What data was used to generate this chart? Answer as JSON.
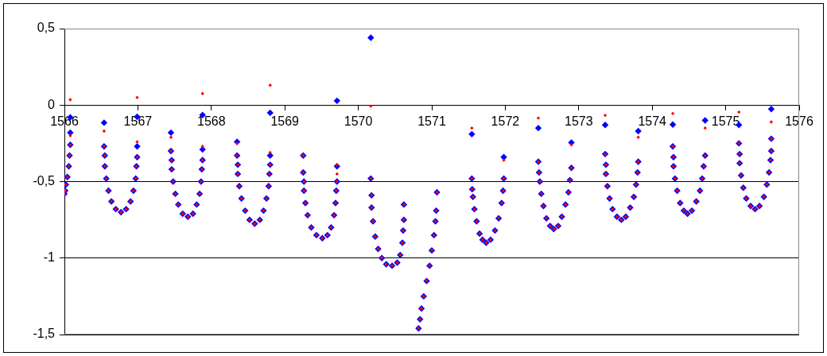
{
  "chart_data": {
    "type": "scatter",
    "xlim": [
      1566,
      1576
    ],
    "xticks": [
      1566,
      1567,
      1568,
      1569,
      1570,
      1571,
      1572,
      1573,
      1574,
      1575,
      1576
    ],
    "ylim": [
      -1.5,
      0.5
    ],
    "yticks": [
      {
        "value": 0.5,
        "label": "0,5"
      },
      0,
      {
        "value": -0.5,
        "label": "-0,5"
      },
      -1,
      {
        "value": -1.5,
        "label": "-1,5"
      }
    ],
    "grid": "y",
    "marker": "diamond",
    "series": [
      {
        "color": "#0000ff",
        "x": [
          1566.0,
          1566.01,
          1566.02,
          1566.04,
          1566.06,
          1566.07,
          1566.08,
          1566.08,
          1566.08,
          1566.54,
          1566.54,
          1566.55,
          1566.55,
          1566.57,
          1566.6,
          1566.64,
          1566.7,
          1566.77,
          1566.84,
          1566.9,
          1566.94,
          1566.97,
          1566.98,
          1566.99,
          1566.99,
          1566.99,
          1567.45,
          1567.45,
          1567.46,
          1567.46,
          1567.48,
          1567.51,
          1567.55,
          1567.61,
          1567.68,
          1567.75,
          1567.8,
          1567.84,
          1567.86,
          1567.87,
          1567.88,
          1567.88,
          1567.88,
          1568.35,
          1568.35,
          1568.36,
          1568.36,
          1568.38,
          1568.41,
          1568.46,
          1568.52,
          1568.59,
          1568.66,
          1568.71,
          1568.75,
          1568.78,
          1568.79,
          1568.8,
          1568.8,
          1568.8,
          1569.25,
          1569.25,
          1569.26,
          1569.26,
          1569.28,
          1569.31,
          1569.36,
          1569.43,
          1569.51,
          1569.58,
          1569.63,
          1569.67,
          1569.69,
          1569.7,
          1569.71,
          1569.71,
          1569.71,
          1570.17,
          1570.17,
          1570.18,
          1570.18,
          1570.2,
          1570.23,
          1570.27,
          1570.32,
          1570.38,
          1570.46,
          1570.53,
          1570.57,
          1570.6,
          1570.61,
          1570.62,
          1570.62,
          1571.07,
          1571.06,
          1571.05,
          1571.03,
          1571.0,
          1570.97,
          1570.93,
          1570.89,
          1570.86,
          1570.84,
          1570.82,
          1571.545,
          1571.545,
          1571.55,
          1571.56,
          1571.58,
          1571.61,
          1571.65,
          1571.69,
          1571.74,
          1571.8,
          1571.86,
          1571.91,
          1571.95,
          1571.97,
          1571.98,
          1571.98,
          1572.45,
          1572.45,
          1572.46,
          1572.47,
          1572.49,
          1572.52,
          1572.56,
          1572.61,
          1572.66,
          1572.72,
          1572.77,
          1572.82,
          1572.86,
          1572.88,
          1572.9,
          1572.9,
          1573.36,
          1573.36,
          1573.37,
          1573.37,
          1573.39,
          1573.42,
          1573.46,
          1573.52,
          1573.58,
          1573.64,
          1573.7,
          1573.75,
          1573.78,
          1573.8,
          1573.81,
          1573.81,
          1574.28,
          1574.28,
          1574.29,
          1574.29,
          1574.31,
          1574.34,
          1574.38,
          1574.43,
          1574.48,
          1574.54,
          1574.6,
          1574.65,
          1574.68,
          1574.7,
          1574.72,
          1574.72,
          1575.18,
          1575.18,
          1575.19,
          1575.19,
          1575.21,
          1575.24,
          1575.28,
          1575.34,
          1575.4,
          1575.46,
          1575.52,
          1575.56,
          1575.59,
          1575.61,
          1575.62,
          1575.62,
          1575.62
        ],
        "values": [
          -0.58,
          -0.56,
          -0.52,
          -0.47,
          -0.4,
          -0.33,
          -0.26,
          -0.18,
          -0.08,
          -0.115,
          -0.27,
          -0.33,
          -0.4,
          -0.48,
          -0.56,
          -0.63,
          -0.68,
          -0.7,
          -0.68,
          -0.63,
          -0.56,
          -0.48,
          -0.4,
          -0.34,
          -0.27,
          -0.077,
          -0.18,
          -0.3,
          -0.36,
          -0.42,
          -0.5,
          -0.58,
          -0.65,
          -0.71,
          -0.73,
          -0.71,
          -0.65,
          -0.58,
          -0.5,
          -0.42,
          -0.36,
          -0.29,
          -0.065,
          -0.24,
          -0.33,
          -0.39,
          -0.45,
          -0.53,
          -0.61,
          -0.69,
          -0.75,
          -0.775,
          -0.75,
          -0.69,
          -0.61,
          -0.53,
          -0.45,
          -0.39,
          -0.33,
          -0.05,
          -0.33,
          -0.44,
          -0.5,
          -0.56,
          -0.64,
          -0.72,
          -0.8,
          -0.85,
          -0.87,
          -0.85,
          -0.8,
          -0.72,
          -0.64,
          -0.56,
          -0.5,
          -0.4,
          0.028,
          0.44,
          -0.48,
          -0.59,
          -0.67,
          -0.76,
          -0.86,
          -0.94,
          -1.0,
          -1.04,
          -1.05,
          -1.03,
          -0.98,
          -0.9,
          -0.82,
          -0.75,
          -0.65,
          -0.57,
          -0.69,
          -0.76,
          -0.85,
          -0.95,
          -1.05,
          -1.15,
          -1.25,
          -1.33,
          -1.4,
          -1.46,
          -0.19,
          -0.48,
          -0.55,
          -0.6,
          -0.68,
          -0.76,
          -0.84,
          -0.88,
          -0.9,
          -0.88,
          -0.82,
          -0.74,
          -0.64,
          -0.56,
          -0.48,
          -0.34,
          -0.15,
          -0.37,
          -0.44,
          -0.5,
          -0.58,
          -0.66,
          -0.74,
          -0.79,
          -0.81,
          -0.79,
          -0.73,
          -0.65,
          -0.57,
          -0.49,
          -0.41,
          -0.245,
          -0.13,
          -0.32,
          -0.39,
          -0.45,
          -0.53,
          -0.61,
          -0.68,
          -0.73,
          -0.75,
          -0.73,
          -0.67,
          -0.6,
          -0.52,
          -0.44,
          -0.37,
          -0.17,
          -0.127,
          -0.27,
          -0.34,
          -0.4,
          -0.48,
          -0.56,
          -0.64,
          -0.69,
          -0.71,
          -0.69,
          -0.63,
          -0.56,
          -0.48,
          -0.4,
          -0.33,
          -0.1,
          -0.13,
          -0.25,
          -0.32,
          -0.38,
          -0.46,
          -0.54,
          -0.61,
          -0.66,
          -0.68,
          -0.66,
          -0.6,
          -0.52,
          -0.44,
          -0.36,
          -0.3,
          -0.22,
          -0.026
        ]
      },
      {
        "color": "#ff0000",
        "x": [
          1566.0,
          1566.01,
          1566.02,
          1566.04,
          1566.06,
          1566.07,
          1566.08,
          1566.08,
          1566.08,
          1566.54,
          1566.54,
          1566.55,
          1566.55,
          1566.57,
          1566.6,
          1566.64,
          1566.7,
          1566.77,
          1566.84,
          1566.9,
          1566.94,
          1566.97,
          1566.98,
          1566.99,
          1566.99,
          1566.99,
          1567.45,
          1567.45,
          1567.46,
          1567.46,
          1567.48,
          1567.51,
          1567.55,
          1567.61,
          1567.68,
          1567.75,
          1567.8,
          1567.84,
          1567.86,
          1567.87,
          1567.88,
          1567.88,
          1567.88,
          1568.35,
          1568.35,
          1568.36,
          1568.36,
          1568.38,
          1568.41,
          1568.46,
          1568.52,
          1568.59,
          1568.66,
          1568.71,
          1568.75,
          1568.78,
          1568.79,
          1568.8,
          1568.8,
          1568.8,
          1569.25,
          1569.25,
          1569.26,
          1569.26,
          1569.28,
          1569.31,
          1569.36,
          1569.43,
          1569.51,
          1569.58,
          1569.63,
          1569.67,
          1569.69,
          1569.7,
          1569.71,
          1569.71,
          1569.71,
          1570.17,
          1570.17,
          1570.18,
          1570.18,
          1570.2,
          1570.23,
          1570.27,
          1570.32,
          1570.38,
          1570.46,
          1570.53,
          1570.57,
          1570.6,
          1570.61,
          1570.62,
          1570.62,
          1571.07,
          1571.06,
          1571.05,
          1571.03,
          1571.0,
          1570.97,
          1570.93,
          1570.89,
          1570.86,
          1570.84,
          1570.82,
          1571.545,
          1571.545,
          1571.55,
          1571.56,
          1571.58,
          1571.61,
          1571.65,
          1571.69,
          1571.74,
          1571.8,
          1571.86,
          1571.91,
          1571.95,
          1571.97,
          1571.98,
          1571.98,
          1572.45,
          1572.45,
          1572.46,
          1572.47,
          1572.49,
          1572.52,
          1572.56,
          1572.61,
          1572.66,
          1572.72,
          1572.77,
          1572.82,
          1572.86,
          1572.88,
          1572.9,
          1572.9,
          1573.36,
          1573.36,
          1573.37,
          1573.37,
          1573.39,
          1573.42,
          1573.46,
          1573.52,
          1573.58,
          1573.64,
          1573.7,
          1573.75,
          1573.78,
          1573.8,
          1573.81,
          1573.81,
          1574.28,
          1574.28,
          1574.29,
          1574.29,
          1574.31,
          1574.34,
          1574.38,
          1574.43,
          1574.48,
          1574.54,
          1574.6,
          1574.65,
          1574.68,
          1574.7,
          1574.72,
          1574.72,
          1575.18,
          1575.18,
          1575.19,
          1575.19,
          1575.21,
          1575.24,
          1575.28,
          1575.34,
          1575.4,
          1575.46,
          1575.52,
          1575.56,
          1575.59,
          1575.61,
          1575.62,
          1575.62,
          1575.62
        ],
        "values": [
          -0.58,
          -0.56,
          -0.52,
          -0.47,
          -0.4,
          -0.33,
          -0.26,
          -0.2,
          0.035,
          -0.17,
          -0.27,
          -0.33,
          -0.4,
          -0.48,
          -0.56,
          -0.63,
          -0.68,
          -0.7,
          -0.68,
          -0.63,
          -0.56,
          -0.48,
          -0.4,
          -0.34,
          -0.24,
          0.05,
          -0.21,
          -0.3,
          -0.36,
          -0.42,
          -0.5,
          -0.58,
          -0.65,
          -0.71,
          -0.73,
          -0.71,
          -0.65,
          -0.58,
          -0.5,
          -0.42,
          -0.36,
          -0.27,
          0.075,
          -0.25,
          -0.33,
          -0.39,
          -0.45,
          -0.53,
          -0.61,
          -0.69,
          -0.75,
          -0.775,
          -0.75,
          -0.69,
          -0.61,
          -0.53,
          -0.45,
          -0.39,
          -0.31,
          0.13,
          -0.33,
          -0.44,
          -0.5,
          -0.56,
          -0.64,
          -0.72,
          -0.8,
          -0.85,
          -0.87,
          -0.85,
          -0.8,
          -0.72,
          -0.64,
          -0.56,
          -0.5,
          -0.45,
          -0.39,
          -0.007,
          -0.48,
          -0.59,
          -0.67,
          -0.76,
          -0.86,
          -0.94,
          -1.0,
          -1.04,
          -1.05,
          -1.03,
          -0.98,
          -0.9,
          -0.82,
          -0.75,
          -0.65,
          -0.57,
          -0.69,
          -0.76,
          -0.85,
          -0.95,
          -1.05,
          -1.15,
          -1.25,
          -1.33,
          -1.4,
          -1.46,
          -0.15,
          -0.48,
          -0.55,
          -0.6,
          -0.68,
          -0.76,
          -0.84,
          -0.88,
          -0.9,
          -0.88,
          -0.82,
          -0.74,
          -0.64,
          -0.56,
          -0.48,
          -0.36,
          -0.085,
          -0.37,
          -0.44,
          -0.5,
          -0.58,
          -0.66,
          -0.74,
          -0.79,
          -0.81,
          -0.79,
          -0.73,
          -0.65,
          -0.57,
          -0.49,
          -0.41,
          -0.26,
          -0.067,
          -0.32,
          -0.39,
          -0.45,
          -0.53,
          -0.61,
          -0.68,
          -0.73,
          -0.75,
          -0.73,
          -0.67,
          -0.6,
          -0.52,
          -0.44,
          -0.37,
          -0.21,
          -0.055,
          -0.27,
          -0.34,
          -0.4,
          -0.48,
          -0.56,
          -0.64,
          -0.69,
          -0.71,
          -0.69,
          -0.63,
          -0.56,
          -0.48,
          -0.4,
          -0.33,
          -0.15,
          -0.046,
          -0.25,
          -0.32,
          -0.38,
          -0.46,
          -0.54,
          -0.61,
          -0.66,
          -0.68,
          -0.66,
          -0.6,
          -0.52,
          -0.44,
          -0.36,
          -0.3,
          -0.22,
          -0.11
        ]
      }
    ]
  }
}
